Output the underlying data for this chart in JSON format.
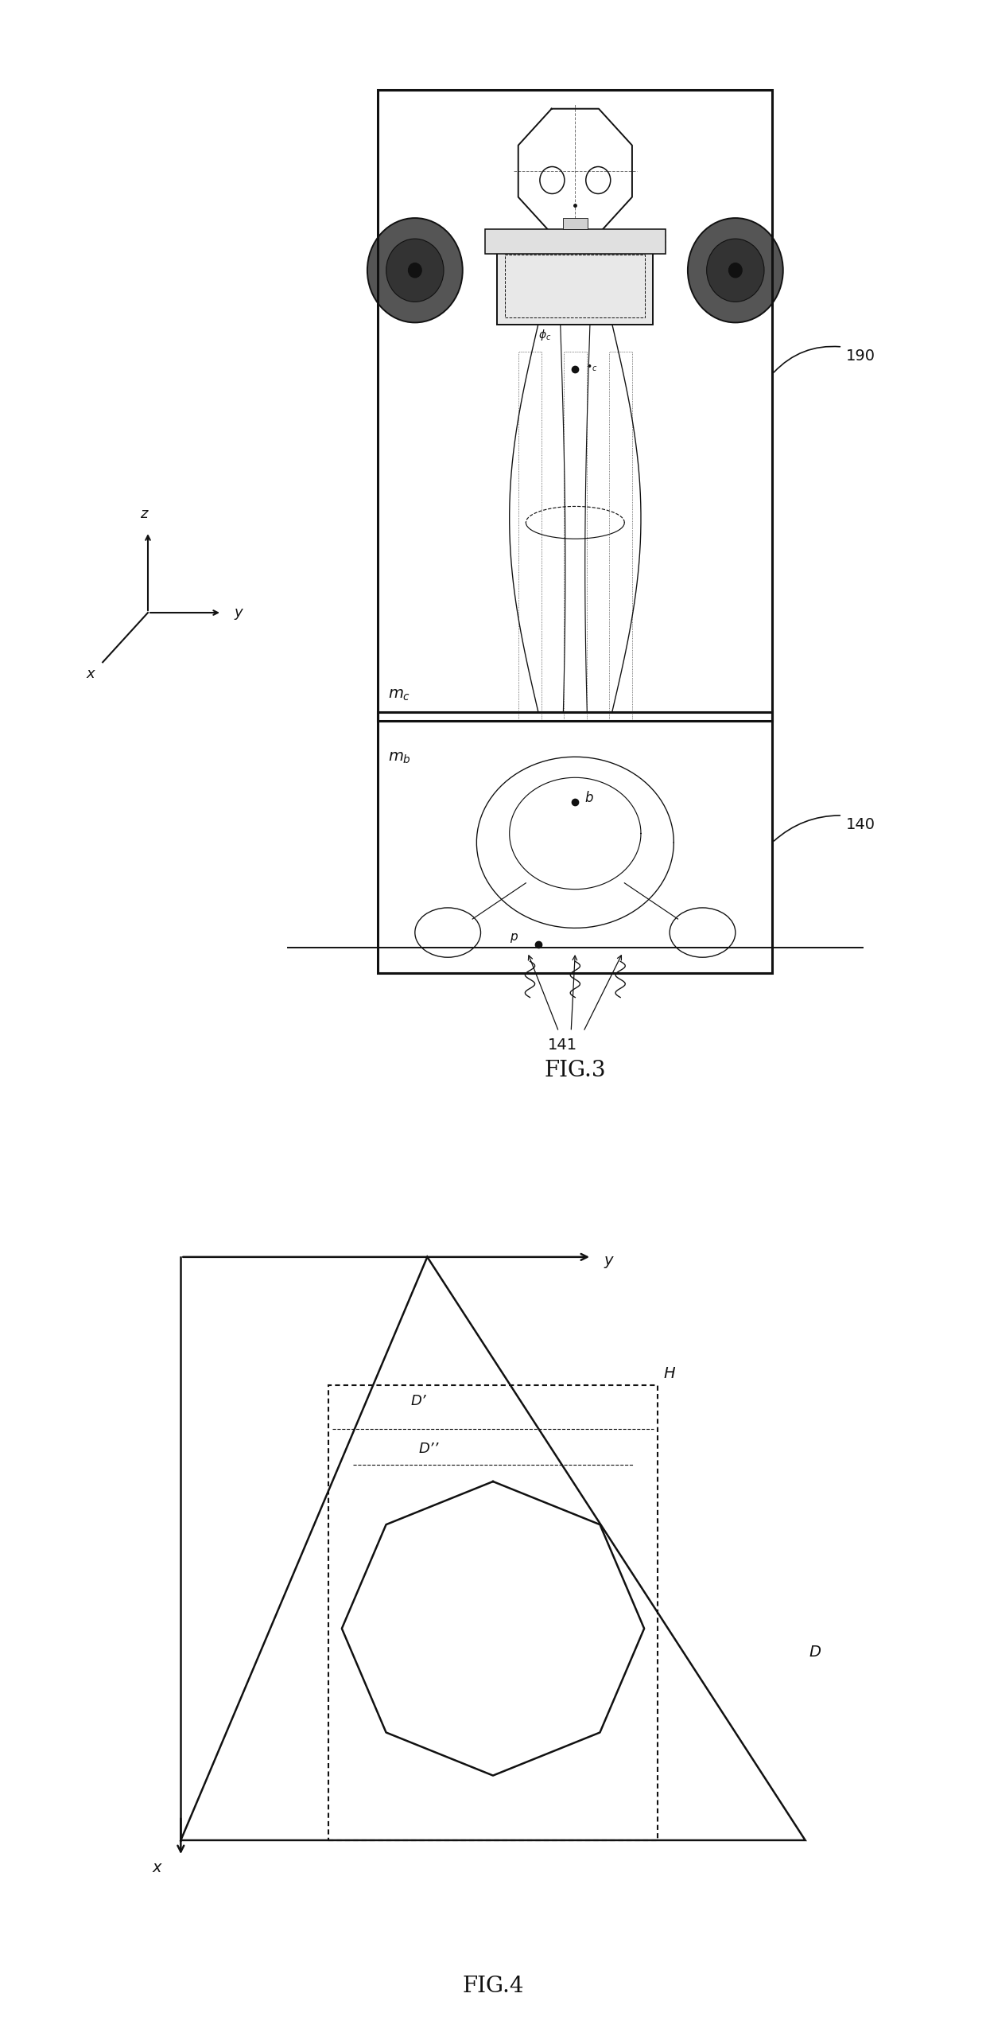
{
  "fig_width": 12.4,
  "fig_height": 25.64,
  "background_color": "#ffffff",
  "fig3_title": "FIG.3",
  "fig4_title": "FIG.4",
  "label_190": "190",
  "label_140": "140",
  "label_141": "141",
  "label_c": "c",
  "label_b": "b",
  "label_p": "p",
  "label_H": "H",
  "label_D": "D",
  "label_D_prime": "D’",
  "label_D_dprime": "D’’",
  "label_x": "x",
  "label_y": "y",
  "label_z": "z",
  "black": "#111111",
  "gray": "#888888",
  "dark_gray": "#444444"
}
